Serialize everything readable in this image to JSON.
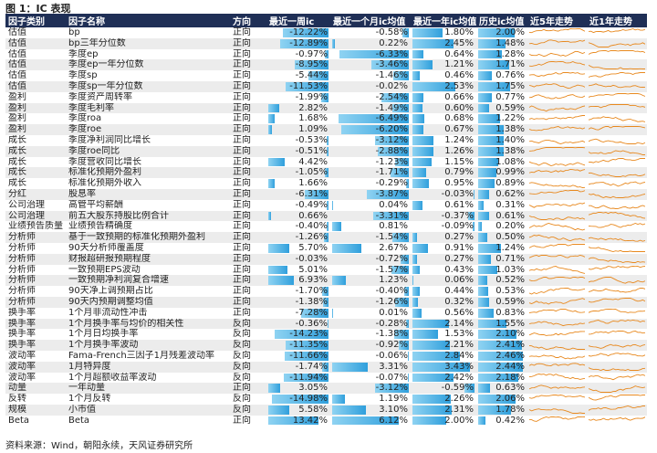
{
  "title": "图 1：IC 表现",
  "source": "资料来源：Wind，朝阳永续，天风证券研究所",
  "headers": [
    "因子类别",
    "因子名称",
    "方向",
    "最近一周ic",
    "最近一个月ic均值",
    "最近一年ic均值",
    "历史ic均值",
    "近5年走势",
    "近1年走势"
  ],
  "rows": [
    [
      "估值",
      "bp",
      "正向",
      "-12.22%",
      "-0.58%",
      "1.80%",
      "2.00%"
    ],
    [
      "估值",
      "bp三年分位数",
      "正向",
      "-12.89%",
      "0.22%",
      "2.45%",
      "1.48%"
    ],
    [
      "估值",
      "季度ep",
      "正向",
      "-0.97%",
      "-6.33%",
      "0.64%",
      "1.28%"
    ],
    [
      "估值",
      "季度ep一年分位数",
      "正向",
      "-8.95%",
      "-3.46%",
      "1.21%",
      "1.71%"
    ],
    [
      "估值",
      "季度sp",
      "正向",
      "-5.44%",
      "-1.46%",
      "0.46%",
      "0.76%"
    ],
    [
      "估值",
      "季度sp一年分位数",
      "正向",
      "-11.53%",
      "-0.02%",
      "2.53%",
      "1.75%"
    ],
    [
      "盈利",
      "季度资产周转率",
      "正向",
      "-1.99%",
      "-2.54%",
      "0.66%",
      "0.77%"
    ],
    [
      "盈利",
      "季度毛利率",
      "正向",
      "2.82%",
      "-1.49%",
      "0.60%",
      "0.59%"
    ],
    [
      "盈利",
      "季度roa",
      "正向",
      "1.68%",
      "-6.49%",
      "0.68%",
      "1.22%"
    ],
    [
      "盈利",
      "季度roe",
      "正向",
      "1.09%",
      "-6.20%",
      "0.67%",
      "1.38%"
    ],
    [
      "成长",
      "季度净利润同比增长",
      "正向",
      "-0.53%",
      "-3.12%",
      "1.24%",
      "1.40%"
    ],
    [
      "成长",
      "季度roe同比",
      "正向",
      "-0.51%",
      "-2.88%",
      "1.26%",
      "1.38%"
    ],
    [
      "成长",
      "季度营收同比增长",
      "正向",
      "4.42%",
      "-1.23%",
      "1.15%",
      "1.08%"
    ],
    [
      "成长",
      "标准化预期外盈利",
      "正向",
      "-1.05%",
      "-1.71%",
      "0.79%",
      "0.99%"
    ],
    [
      "成长",
      "标准化预期外收入",
      "正向",
      "1.66%",
      "-0.29%",
      "0.95%",
      "0.89%"
    ],
    [
      "分红",
      "股息率",
      "正向",
      "-6.31%",
      "-3.87%",
      "-0.03%",
      "0.62%"
    ],
    [
      "公司治理",
      "高管平均薪酬",
      "正向",
      "-0.49%",
      "0.04%",
      "0.61%",
      "0.31%"
    ],
    [
      "公司治理",
      "前五大股东持股比例合计",
      "正向",
      "0.66%",
      "-3.31%",
      "-0.37%",
      "0.61%"
    ],
    [
      "业绩预告质量",
      "业绩预告精确度",
      "正向",
      "-0.40%",
      "0.81%",
      "-0.09%",
      "0.20%"
    ],
    [
      "分析师",
      "基于一致预期的标准化预期外盈利",
      "正向",
      "-1.26%",
      "-1.54%",
      "0.27%",
      "0.50%"
    ],
    [
      "分析师",
      "90天分析师覆盖度",
      "正向",
      "5.70%",
      "2.67%",
      "0.91%",
      "1.24%"
    ],
    [
      "分析师",
      "财报超研报预期程度",
      "正向",
      "-0.03%",
      "-0.72%",
      "0.27%",
      "0.71%"
    ],
    [
      "分析师",
      "一致预期EPS波动",
      "正向",
      "5.01%",
      "-1.57%",
      "0.43%",
      "1.03%"
    ],
    [
      "分析师",
      "一致预期净利润复合增速",
      "正向",
      "6.93%",
      "1.23%",
      "0.06%",
      "0.52%"
    ],
    [
      "分析师",
      "90天净上调预期占比",
      "正向",
      "-1.70%",
      "-0.40%",
      "0.44%",
      "0.53%"
    ],
    [
      "分析师",
      "90天内预期调整均值",
      "正向",
      "-1.38%",
      "-1.26%",
      "0.32%",
      "0.59%"
    ],
    [
      "换手率",
      "1个月非流动性冲击",
      "正向",
      "-7.28%",
      "0.01%",
      "0.56%",
      "0.83%"
    ],
    [
      "换手率",
      "1个月换手率与均价的相关性",
      "反向",
      "-0.36%",
      "-0.28%",
      "2.14%",
      "1.55%"
    ],
    [
      "换手率",
      "1个月日均换手率",
      "反向",
      "-14.23%",
      "-1.38%",
      "1.53%",
      "2.10%"
    ],
    [
      "换手率",
      "1个月换手率波动",
      "反向",
      "-11.35%",
      "-0.92%",
      "2.21%",
      "2.41%"
    ],
    [
      "波动率",
      "Fama-French三因子1月残差波动率",
      "反向",
      "-11.66%",
      "-0.06%",
      "2.84%",
      "2.46%"
    ],
    [
      "波动率",
      "1月特异度",
      "反向",
      "-1.74%",
      "3.31%",
      "3.43%",
      "2.44%"
    ],
    [
      "波动率",
      "1个月超额收益率波动",
      "反向",
      "-11.94%",
      "-0.07%",
      "2.42%",
      "2.18%"
    ],
    [
      "动量",
      "一年动量",
      "正向",
      "3.05%",
      "-3.12%",
      "-0.59%",
      "0.63%"
    ],
    [
      "反转",
      "1个月反转",
      "反向",
      "-14.98%",
      "1.19%",
      "2.26%",
      "2.06%"
    ],
    [
      "规模",
      "小市值",
      "反向",
      "5.58%",
      "3.10%",
      "2.31%",
      "1.78%"
    ],
    [
      "Beta",
      "Beta",
      "正向",
      "13.42%",
      "6.12%",
      "2.00%",
      "0.42%"
    ]
  ],
  "colors": {
    "header_bg": "#1f2f56",
    "bar_start": "#8fd3f2",
    "bar_end": "#2f9fdc",
    "spark": "#e8891f",
    "row_alt": "#ececec"
  }
}
